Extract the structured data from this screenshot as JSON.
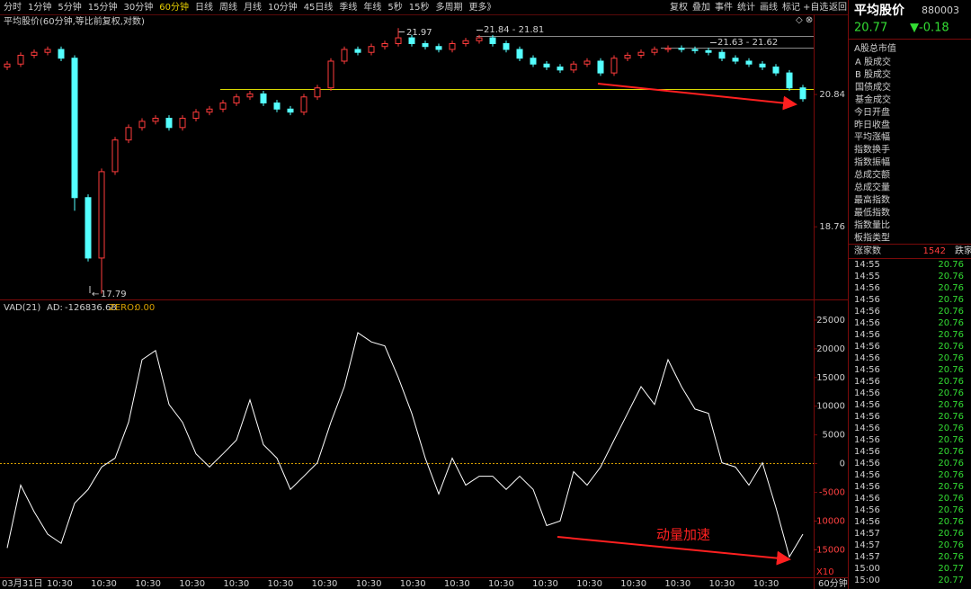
{
  "toolbar": {
    "periods": [
      "分时",
      "1分钟",
      "5分钟",
      "15分钟",
      "30分钟",
      "60分钟",
      "日线",
      "周线",
      "月线",
      "10分钟",
      "45日线",
      "季线",
      "年线",
      "5秒",
      "15秒",
      "多周期",
      "更多》"
    ],
    "active": 5,
    "tools": [
      "复权",
      "叠加",
      "事件",
      "统计",
      "画线",
      "标记",
      "+自选",
      "返回"
    ]
  },
  "price_panel": {
    "title": "平均股价(60分钟,等比前复权,对数)",
    "log": true,
    "ylim": [
      17.72,
      22.21
    ],
    "yticks": [
      18.76,
      20.84
    ],
    "up_color": "#ff3c3c",
    "down_color": "#54ffff",
    "candles": {
      "open": [
        21.3,
        21.35,
        21.5,
        21.55,
        21.6,
        21.45,
        19.2,
        18.3,
        19.6,
        20.1,
        20.3,
        20.4,
        20.45,
        20.3,
        20.45,
        20.55,
        20.6,
        20.7,
        20.8,
        20.85,
        20.7,
        20.6,
        20.55,
        20.8,
        20.95,
        21.4,
        21.6,
        21.55,
        21.65,
        21.7,
        21.8,
        21.7,
        21.65,
        21.6,
        21.7,
        21.75,
        21.8,
        21.7,
        21.6,
        21.45,
        21.35,
        21.3,
        21.25,
        21.35,
        21.4,
        21.2,
        21.45,
        21.5,
        21.55,
        21.6,
        21.62,
        21.6,
        21.58,
        21.55,
        21.45,
        21.4,
        21.35,
        21.3,
        21.2,
        20.95
      ],
      "high": [
        21.4,
        21.55,
        21.6,
        21.65,
        21.65,
        21.5,
        19.25,
        19.65,
        20.15,
        20.35,
        20.45,
        20.5,
        20.5,
        20.5,
        20.6,
        20.65,
        20.75,
        20.85,
        20.9,
        20.9,
        20.75,
        20.65,
        20.85,
        21.0,
        21.45,
        21.65,
        21.65,
        21.7,
        21.75,
        21.97,
        21.85,
        21.75,
        21.7,
        21.75,
        21.8,
        21.85,
        21.85,
        21.75,
        21.65,
        21.5,
        21.4,
        21.35,
        21.4,
        21.45,
        21.45,
        21.5,
        21.55,
        21.6,
        21.65,
        21.67,
        21.67,
        21.65,
        21.63,
        21.6,
        21.5,
        21.45,
        21.4,
        21.35,
        21.25,
        21.0
      ],
      "low": [
        21.25,
        21.3,
        21.45,
        21.5,
        21.4,
        19.0,
        18.25,
        17.79,
        19.55,
        20.05,
        20.25,
        20.35,
        20.25,
        20.25,
        20.4,
        20.5,
        20.55,
        20.65,
        20.75,
        20.65,
        20.55,
        20.5,
        20.5,
        20.75,
        20.9,
        21.35,
        21.5,
        21.5,
        21.6,
        21.65,
        21.65,
        21.6,
        21.55,
        21.55,
        21.65,
        21.7,
        21.65,
        21.55,
        21.4,
        21.3,
        21.25,
        21.2,
        21.2,
        21.3,
        21.15,
        21.15,
        21.4,
        21.45,
        21.5,
        21.55,
        21.55,
        21.53,
        21.5,
        21.4,
        21.35,
        21.3,
        21.25,
        21.15,
        20.9,
        20.72
      ],
      "close": [
        21.35,
        21.5,
        21.55,
        21.6,
        21.45,
        19.2,
        18.3,
        19.6,
        20.1,
        20.3,
        20.4,
        20.45,
        20.3,
        20.45,
        20.55,
        20.6,
        20.7,
        20.8,
        20.85,
        20.7,
        20.6,
        20.55,
        20.8,
        20.95,
        21.4,
        21.6,
        21.55,
        21.65,
        21.7,
        21.8,
        21.7,
        21.65,
        21.6,
        21.7,
        21.75,
        21.8,
        21.7,
        21.6,
        21.45,
        21.35,
        21.3,
        21.25,
        21.35,
        21.4,
        21.2,
        21.45,
        21.5,
        21.55,
        21.6,
        21.62,
        21.6,
        21.58,
        21.55,
        21.45,
        21.4,
        21.35,
        21.3,
        21.2,
        20.95,
        20.77
      ]
    },
    "annotations": {
      "high": 21.97,
      "range1": "21.84 - 21.81",
      "range2": "21.63 - 21.62",
      "low": 17.79
    }
  },
  "indicator_panel": {
    "name": "VAD(21)",
    "ad_label": "AD:",
    "ad": -126836.68,
    "zero_label": "ZERO:",
    "zero": {
      "value": 0,
      "label": "0.00"
    },
    "ylim": [
      -19500,
      27500
    ],
    "yticks": [
      25000,
      20000,
      15000,
      10000,
      5000,
      0,
      -5000,
      -10000,
      -15000
    ],
    "color": "#ffffff",
    "zero_color": "#d8a000",
    "values": [
      -14700,
      -3750,
      -8400,
      -12300,
      -13900,
      -6900,
      -4500,
      -600,
      950,
      7200,
      18100,
      19700,
      10300,
      7200,
      1700,
      -600,
      1700,
      4100,
      11100,
      3300,
      950,
      -4500,
      -2200,
      150,
      7200,
      13400,
      22800,
      21200,
      20500,
      15000,
      8750,
      950,
      -5300,
      950,
      -3750,
      -2200,
      -2200,
      -4500,
      -2200,
      -4500,
      -10800,
      -10000,
      -1400,
      -3750,
      -600,
      4100,
      8750,
      13400,
      10300,
      18100,
      13400,
      9500,
      8750,
      150,
      -600,
      -3750,
      150,
      -7650,
      -16250,
      -12300
    ],
    "note": "动量加速",
    "scale": "X10"
  },
  "x_axis": {
    "labels": [
      "03月31日",
      "10:30",
      "10:30",
      "10:30",
      "10:30",
      "10:30",
      "10:30",
      "10:30",
      "10:30",
      "10:30",
      "10:30",
      "10:30",
      "10:30",
      "10:30",
      "10:30",
      "10:30",
      "10:30",
      "10:30"
    ],
    "period": "60分钟"
  },
  "sidebar": {
    "name": "平均股价",
    "code": "880003",
    "price": 20.77,
    "change": "▼-0.18",
    "fields": [
      "A股总市值",
      "A 股成交",
      "B 股成交",
      "国债成交",
      "基金成交",
      "今日开盘",
      "昨日收盘",
      "平均涨幅",
      "指数换手",
      "指数振幅",
      "总成交额",
      "总成交量",
      "最高指数",
      "最低指数",
      "指数量比",
      "板指类型"
    ],
    "advance_label": "涨家数",
    "advance": 1542,
    "decline_label": "跌家",
    "ticks": [
      [
        "14:55",
        20.76
      ],
      [
        "14:55",
        20.76
      ],
      [
        "14:56",
        20.76
      ],
      [
        "14:56",
        20.76
      ],
      [
        "14:56",
        20.76
      ],
      [
        "14:56",
        20.76
      ],
      [
        "14:56",
        20.76
      ],
      [
        "14:56",
        20.76
      ],
      [
        "14:56",
        20.76
      ],
      [
        "14:56",
        20.76
      ],
      [
        "14:56",
        20.76
      ],
      [
        "14:56",
        20.76
      ],
      [
        "14:56",
        20.76
      ],
      [
        "14:56",
        20.76
      ],
      [
        "14:56",
        20.76
      ],
      [
        "14:56",
        20.76
      ],
      [
        "14:56",
        20.76
      ],
      [
        "14:56",
        20.76
      ],
      [
        "14:56",
        20.76
      ],
      [
        "14:56",
        20.76
      ],
      [
        "14:56",
        20.76
      ],
      [
        "14:56",
        20.76
      ],
      [
        "14:56",
        20.76
      ],
      [
        "14:57",
        20.76
      ],
      [
        "14:57",
        20.76
      ],
      [
        "14:57",
        20.76
      ],
      [
        "15:00",
        20.77
      ],
      [
        "15:00",
        20.77
      ]
    ]
  }
}
